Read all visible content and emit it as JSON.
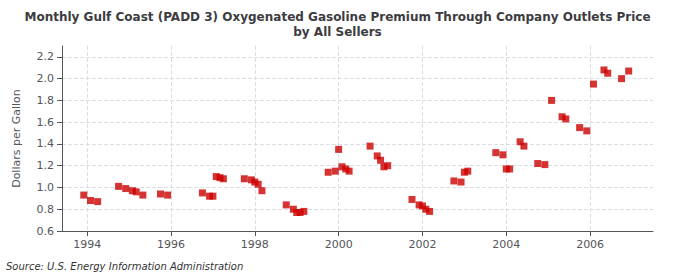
{
  "chart_data": {
    "type": "scatter",
    "title": "Monthly Gulf Coast (PADD 3) Oxygenated Gasoline Premium Through Company Outlets Price\nby All Sellers",
    "ylabel": "Dollars per Gallon",
    "annotations": [
      "Source: U.S. Energy Information Administration"
    ],
    "color": "#cc0000",
    "marker": "square",
    "grid": true,
    "xlim": [
      1993.4,
      2007.5
    ],
    "xticks": [
      1994,
      1996,
      1998,
      2000,
      2002,
      2004,
      2006
    ],
    "ylim": [
      0.6,
      2.3
    ],
    "yticks": [
      0.6,
      0.8,
      {
        "value": 1.0,
        "label": "1.0"
      },
      1.2,
      1.4,
      1.6,
      1.8,
      {
        "value": 2.0,
        "label": "2.0"
      },
      2.2
    ],
    "x": [
      1993.92,
      1994.08,
      1994.25,
      1994.75,
      1994.92,
      1995.08,
      1995.17,
      1995.33,
      1995.75,
      1995.92,
      1996.75,
      1996.92,
      1997.0,
      1997.08,
      1997.17,
      1997.25,
      1997.75,
      1997.92,
      1998.0,
      1998.08,
      1998.17,
      1998.75,
      1998.92,
      1999.0,
      1999.08,
      1999.17,
      1999.75,
      1999.92,
      2000.0,
      2000.08,
      2000.17,
      2000.25,
      2000.75,
      2000.92,
      2001.0,
      2001.08,
      2001.17,
      2001.75,
      2001.92,
      2002.0,
      2002.08,
      2002.17,
      2002.75,
      2002.92,
      2003.0,
      2003.08,
      2003.75,
      2003.92,
      2004.0,
      2004.08,
      2004.33,
      2004.42,
      2004.75,
      2004.92,
      2005.08,
      2005.33,
      2005.42,
      2005.75,
      2005.92,
      2006.08,
      2006.33,
      2006.42,
      2006.75,
      2006.92
    ],
    "values": [
      0.93,
      0.88,
      0.87,
      1.01,
      0.99,
      0.97,
      0.96,
      0.93,
      0.94,
      0.93,
      0.95,
      0.92,
      0.92,
      1.1,
      1.09,
      1.08,
      1.08,
      1.07,
      1.05,
      1.03,
      0.97,
      0.84,
      0.8,
      0.77,
      0.77,
      0.78,
      1.14,
      1.15,
      1.35,
      1.19,
      1.17,
      1.15,
      1.38,
      1.29,
      1.25,
      1.19,
      1.2,
      0.89,
      0.84,
      0.83,
      0.8,
      0.78,
      1.06,
      1.05,
      1.14,
      1.15,
      1.32,
      1.3,
      1.17,
      1.17,
      1.42,
      1.38,
      1.22,
      1.21,
      1.8,
      1.65,
      1.63,
      1.55,
      1.52,
      1.95,
      2.08,
      2.05,
      2.0,
      2.07
    ]
  }
}
